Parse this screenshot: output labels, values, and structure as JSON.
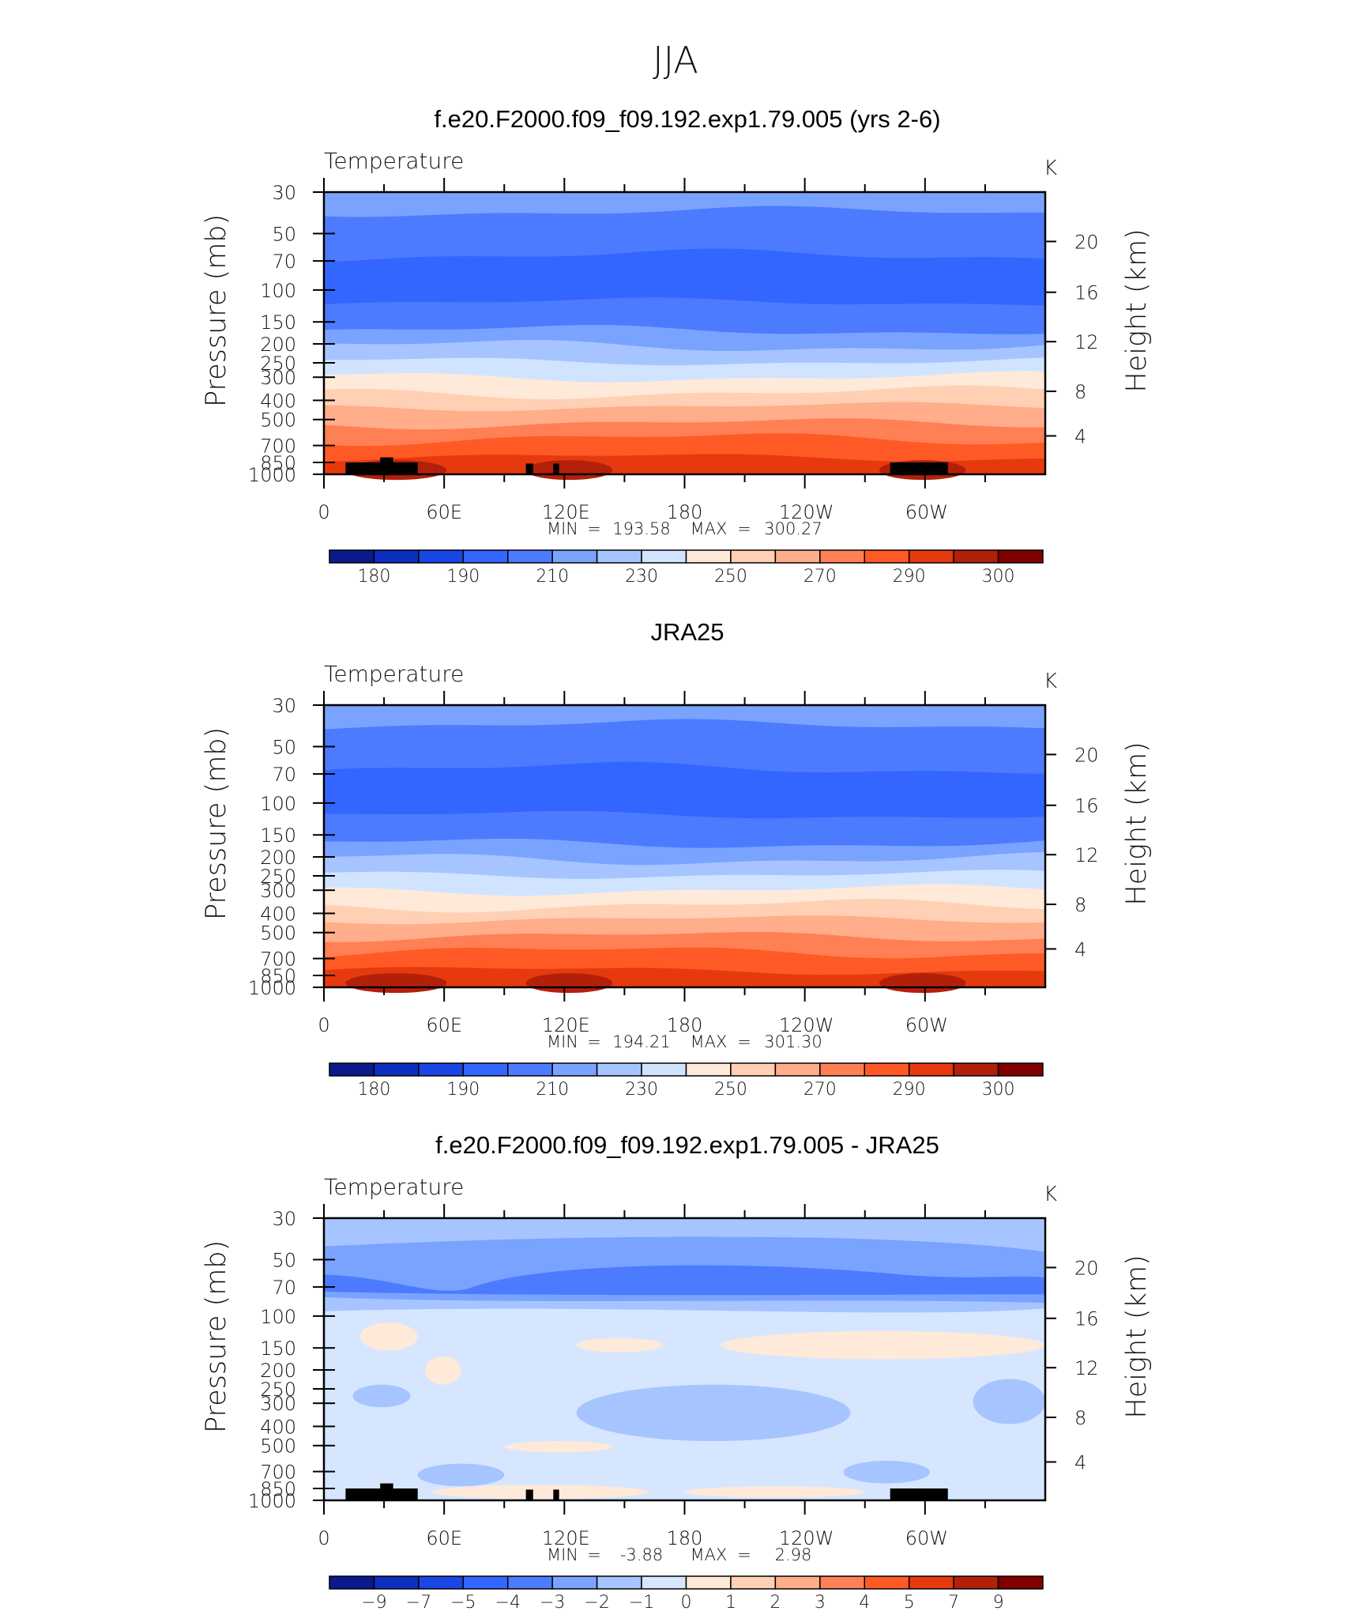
{
  "figure": {
    "title": "JJA",
    "colors": {
      "temperature_levels": [
        "#0a1a8c",
        "#0d2fbf",
        "#1a46e6",
        "#3366ff",
        "#4d7bff",
        "#7aa3ff",
        "#a6c4ff",
        "#d1e4ff",
        "#ffe9d9",
        "#ffd0b3",
        "#ffad8a",
        "#ff8055",
        "#ff5a25",
        "#e63a0e",
        "#b3200a",
        "#800000"
      ],
      "difference_levels": [
        "#0a1a8c",
        "#0d2fbf",
        "#1a46e6",
        "#3366ff",
        "#4d7bff",
        "#7aa3ff",
        "#a6c4ff",
        "#d6e6ff",
        "#ffe9d9",
        "#ffd0b3",
        "#ffad8a",
        "#ff8055",
        "#ff5a25",
        "#e63a0e",
        "#b3200a",
        "#800000"
      ],
      "topography": "#000000"
    }
  },
  "chart_data": [
    {
      "type": "heatmap",
      "title": "f.e20.F2000.f09_f09.192.exp1.79.005 (yrs 2-6)",
      "variable_label": "Temperature",
      "units": "K",
      "ylabel": "Pressure (mb)",
      "y2label": "Height (km)",
      "xticks": [
        "0",
        "60E",
        "120E",
        "180",
        "120W",
        "60W"
      ],
      "yticks": [
        "30",
        "50",
        "70",
        "100",
        "150",
        "200",
        "250",
        "300",
        "400",
        "500",
        "700",
        "850",
        "1000"
      ],
      "y2ticks": [
        "20",
        "16",
        "12",
        "8",
        "4"
      ],
      "stats": {
        "min_label": "MIN",
        "min_value": "193.58",
        "max_label": "MAX",
        "max_value": "300.27"
      },
      "colorbar_labels": [
        "180",
        "190",
        "210",
        "230",
        "250",
        "270",
        "290",
        "300"
      ]
    },
    {
      "type": "heatmap",
      "title": "JRA25",
      "variable_label": "Temperature",
      "units": "K",
      "ylabel": "Pressure (mb)",
      "y2label": "Height (km)",
      "xticks": [
        "0",
        "60E",
        "120E",
        "180",
        "120W",
        "60W"
      ],
      "yticks": [
        "30",
        "50",
        "70",
        "100",
        "150",
        "200",
        "250",
        "300",
        "400",
        "500",
        "700",
        "850",
        "1000"
      ],
      "y2ticks": [
        "20",
        "16",
        "12",
        "8",
        "4"
      ],
      "stats": {
        "min_label": "MIN",
        "min_value": "194.21",
        "max_label": "MAX",
        "max_value": "301.30"
      },
      "colorbar_labels": [
        "180",
        "190",
        "210",
        "230",
        "250",
        "270",
        "290",
        "300"
      ]
    },
    {
      "type": "heatmap",
      "title": "f.e20.F2000.f09_f09.192.exp1.79.005 - JRA25",
      "variable_label": "Temperature",
      "units": "K",
      "ylabel": "Pressure (mb)",
      "y2label": "Height (km)",
      "xticks": [
        "0",
        "60E",
        "120E",
        "180",
        "120W",
        "60W"
      ],
      "yticks": [
        "30",
        "50",
        "70",
        "100",
        "150",
        "200",
        "250",
        "300",
        "400",
        "500",
        "700",
        "850",
        "1000"
      ],
      "y2ticks": [
        "20",
        "16",
        "12",
        "8",
        "4"
      ],
      "stats": {
        "min_label": "MIN",
        "min_value": "-3.88",
        "max_label": "MAX",
        "max_value": "2.98"
      },
      "colorbar_labels": [
        "−9",
        "−7",
        "−5",
        "−4",
        "−3",
        "−2",
        "−1",
        "0",
        "1",
        "2",
        "3",
        "4",
        "5",
        "7",
        "9"
      ]
    }
  ]
}
